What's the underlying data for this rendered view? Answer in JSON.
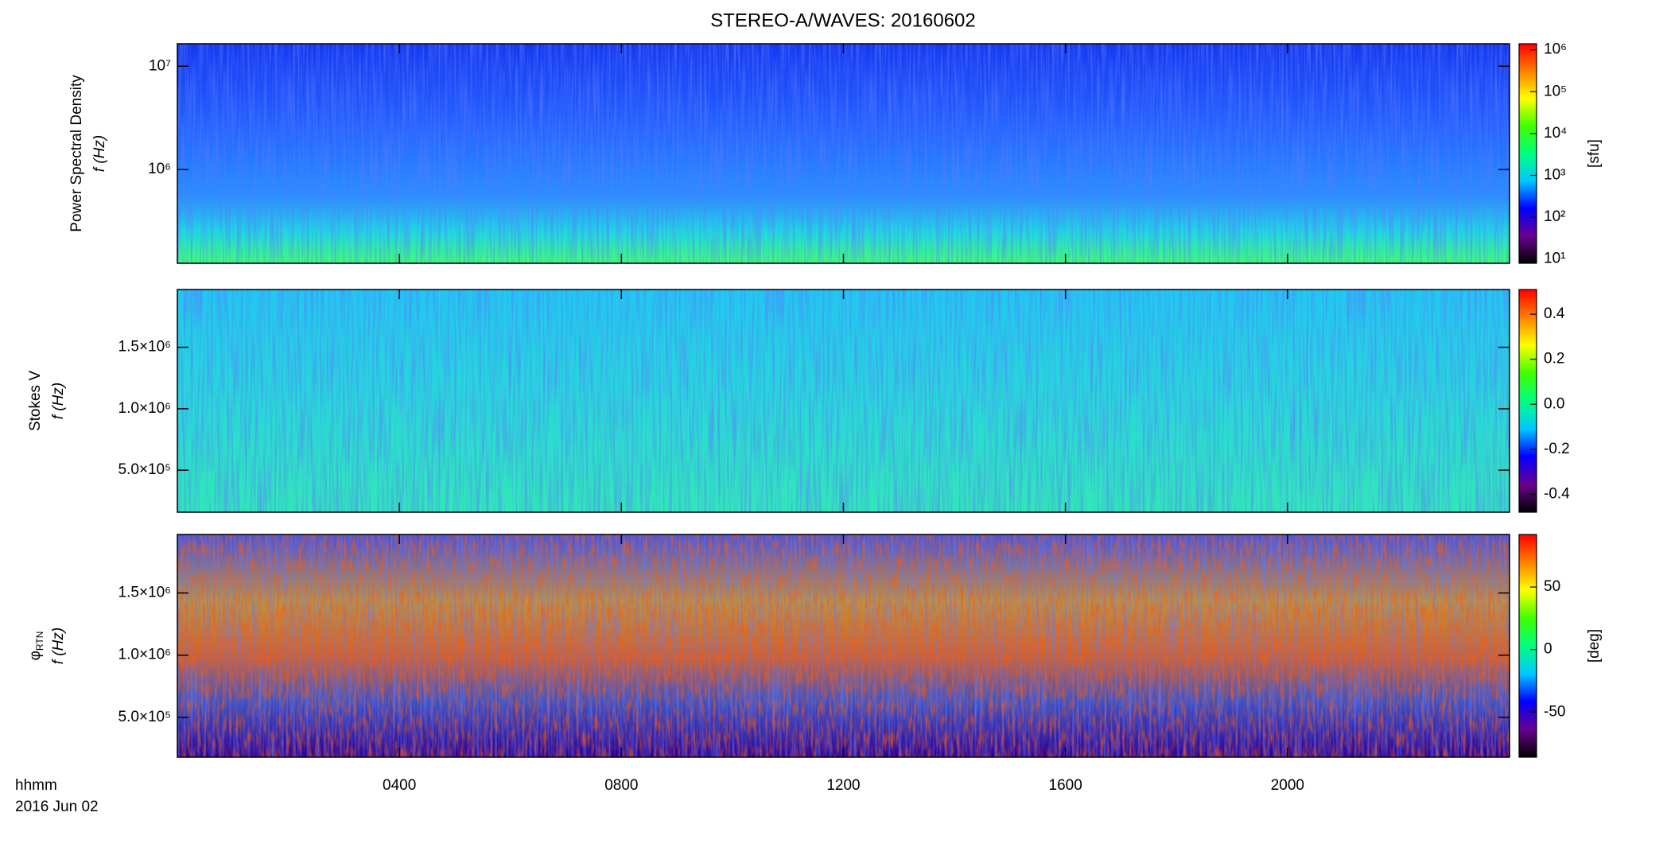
{
  "chart_data": {
    "type": "spectrogram",
    "title": "STEREO-A/WAVES: 20160602",
    "xlabel": "hhmm",
    "date": "2016 Jun 02",
    "xlim": [
      0,
      24
    ],
    "xticks": [
      {
        "value": 4,
        "label": "0400"
      },
      {
        "value": 8,
        "label": "0800"
      },
      {
        "value": 12,
        "label": "1200"
      },
      {
        "value": 16,
        "label": "1600"
      },
      {
        "value": 20,
        "label": "2000"
      }
    ],
    "colormap": [
      "#000000",
      "#6a0090",
      "#0000ff",
      "#00c8ff",
      "#00ff80",
      "#40ff00",
      "#ffff00",
      "#ff8000",
      "#ff0000"
    ],
    "panels": [
      {
        "ylabel": [
          "Power Spectral Density",
          "f (Hz)"
        ],
        "ylog": true,
        "ylim": [
          124000,
          16500000
        ],
        "yticks": [
          {
            "value": 1000000,
            "label": "10⁶"
          },
          {
            "value": 10000000,
            "label": "10⁷"
          }
        ],
        "colorbar": {
          "label": "[sfu]",
          "log": true,
          "clim": [
            7.9,
            1400000
          ],
          "ticks": [
            {
              "value": 10,
              "label": "10¹"
            },
            {
              "value": 100,
              "label": "10²"
            },
            {
              "value": 1000,
              "label": "10³"
            },
            {
              "value": 10000,
              "label": "10⁴"
            },
            {
              "value": 100000,
              "label": "10⁵"
            },
            {
              "value": 1000000,
              "label": "10⁶"
            }
          ]
        }
      },
      {
        "ylabel": [
          "Stokes V",
          "f (Hz)"
        ],
        "ylog": false,
        "ylim": [
          158000,
          1970000
        ],
        "yticks": [
          {
            "value": 500000,
            "label": "5.0×10⁵"
          },
          {
            "value": 1000000,
            "label": "1.0×10⁶"
          },
          {
            "value": 1500000,
            "label": "1.5×10⁶"
          }
        ],
        "colorbar": {
          "log": false,
          "clim": [
            -0.48,
            0.51
          ],
          "ticks": [
            -0.4,
            -0.2,
            {
              "value": 0,
              "label": "0.0"
            },
            0.2,
            0.4
          ]
        }
      },
      {
        "ylabel": [
          "φ",
          "f (Hz)"
        ],
        "ylabel_subscript": "RTN",
        "ylog": false,
        "ylim": [
          180000,
          1970000
        ],
        "yticks": [
          {
            "value": 500000,
            "label": "5.0×10⁵"
          },
          {
            "value": 1000000,
            "label": "1.0×10⁶"
          },
          {
            "value": 1500000,
            "label": "1.5×10⁶"
          }
        ],
        "colorbar": {
          "label": "[deg]",
          "log": false,
          "clim": [
            -86,
            92
          ],
          "ticks": [
            -50,
            0,
            50
          ]
        }
      }
    ]
  }
}
